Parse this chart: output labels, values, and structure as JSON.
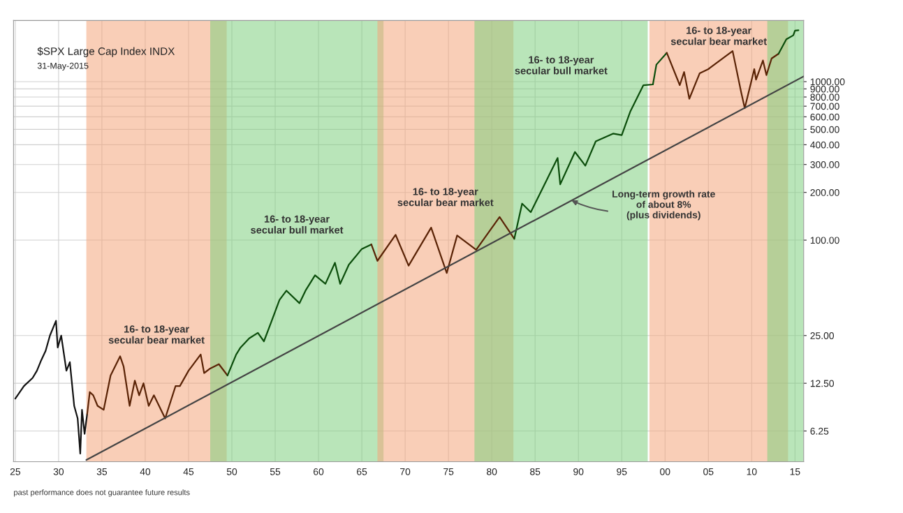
{
  "chart_data": {
    "type": "line",
    "title": "$SPX Large Cap Index INDX",
    "subtitle": "31-May-2015",
    "log": "y",
    "grid": true,
    "marker": "none",
    "line_style": "solid",
    "xlim": [
      1924.8,
      2016
    ],
    "xticks": [
      {
        "value": 1925,
        "label": "25"
      },
      {
        "value": 1930,
        "label": "30"
      },
      {
        "value": 1935,
        "label": "35"
      },
      {
        "value": 1940,
        "label": "40"
      },
      {
        "value": 1945,
        "label": "45"
      },
      {
        "value": 1950,
        "label": "50"
      },
      {
        "value": 1955,
        "label": "55"
      },
      {
        "value": 1960,
        "label": "60"
      },
      {
        "value": 1965,
        "label": "65"
      },
      {
        "value": 1970,
        "label": "70"
      },
      {
        "value": 1975,
        "label": "75"
      },
      {
        "value": 1980,
        "label": "80"
      },
      {
        "value": 1985,
        "label": "85"
      },
      {
        "value": 1990,
        "label": "90"
      },
      {
        "value": 1995,
        "label": "95"
      },
      {
        "value": 2000,
        "label": "00"
      },
      {
        "value": 2005,
        "label": "05"
      },
      {
        "value": 2010,
        "label": "10"
      },
      {
        "value": 2015,
        "label": "15"
      }
    ],
    "ylim": [
      4,
      2430
    ],
    "yticks": [
      {
        "value": 6.25,
        "label": "6.25"
      },
      {
        "value": 12.5,
        "label": "12.50"
      },
      {
        "value": 25,
        "label": "25.00"
      },
      {
        "value": 100,
        "label": "100.00"
      },
      {
        "value": 200,
        "label": "200.00"
      },
      {
        "value": 300,
        "label": "300.00"
      },
      {
        "value": 400,
        "label": "400.00"
      },
      {
        "value": 500,
        "label": "500.00"
      },
      {
        "value": 600,
        "label": "600.00"
      },
      {
        "value": 700,
        "label": "700.00"
      },
      {
        "value": 800,
        "label": "800.00"
      },
      {
        "value": 900,
        "label": "900.00"
      },
      {
        "value": 1000,
        "label": "1000.00"
      }
    ],
    "series": [
      {
        "color": "#111111",
        "x": [
          1925,
          1926,
          1927,
          1927.5,
          1928,
          1928.5,
          1929,
          1929.7,
          1929.9,
          1930.3,
          1930.9,
          1931.3,
          1931.8,
          1932.2,
          1932.5,
          1932.7,
          1933.0,
          1933.3
        ],
        "values": [
          10,
          12,
          13.5,
          15,
          17.5,
          20,
          25,
          31,
          21,
          25,
          15,
          17,
          9,
          7.5,
          4.5,
          8.5,
          6,
          8
        ]
      },
      {
        "color": "#5a2306",
        "x": [
          1933.3,
          1933.6,
          1934,
          1934.5,
          1935.2,
          1936,
          1937.1,
          1937.5,
          1938.2,
          1938.8,
          1939.3,
          1939.8,
          1940.4,
          1941,
          1942.3,
          1943.5,
          1944,
          1945,
          1946.4,
          1946.8,
          1947.5,
          1948.5,
          1949.5
        ],
        "values": [
          8,
          11,
          10.5,
          9,
          8.5,
          14,
          18.5,
          16,
          9,
          13,
          10.5,
          12.5,
          9,
          10.5,
          7.5,
          12,
          12,
          15,
          19,
          14.5,
          15.5,
          16.5,
          14
        ]
      },
      {
        "color": "#0b4d0b",
        "x": [
          1949.5,
          1950.5,
          1951,
          1952,
          1953,
          1953.7,
          1954.5,
          1955.5,
          1956.3,
          1957.8,
          1958.5,
          1959.6,
          1960.8,
          1961.9,
          1962.5,
          1963.5,
          1965,
          1966.1
        ],
        "values": [
          14,
          19,
          21,
          24,
          26,
          23,
          30,
          42,
          48,
          40,
          48,
          60,
          53,
          72,
          53,
          70,
          88,
          94
        ]
      },
      {
        "color": "#5a2306",
        "x": [
          1966.1,
          1966.8,
          1968.9,
          1970.4,
          1973.0,
          1974.8,
          1976,
          1978.2,
          1980.9,
          1982.6
        ],
        "values": [
          94,
          74,
          108,
          69,
          120,
          62,
          107,
          87,
          140,
          102
        ]
      },
      {
        "color": "#0b4d0b",
        "x": [
          1982.6,
          1983.5,
          1984.5,
          1987.6,
          1987.9,
          1989.6,
          1990.8,
          1992,
          1994,
          1995,
          1996,
          1997.5,
          1998.6,
          1999,
          2000.2
        ],
        "values": [
          102,
          170,
          150,
          330,
          225,
          360,
          295,
          420,
          470,
          460,
          650,
          950,
          960,
          1280,
          1520
        ]
      },
      {
        "color": "#5a2306",
        "x": [
          2000.2,
          2001.7,
          2002.2,
          2002.8,
          2004,
          2005,
          2007.8,
          2008.8,
          2009.2,
          2010.3,
          2010.5,
          2011.3,
          2011.7,
          2012.3,
          2013.1
        ],
        "values": [
          1520,
          950,
          1150,
          780,
          1130,
          1200,
          1560,
          850,
          680,
          1200,
          1030,
          1360,
          1100,
          1400,
          1500
        ]
      },
      {
        "color": "#0b4d0b",
        "x": [
          2013.1,
          2014,
          2014.8,
          2015.0,
          2015.4
        ],
        "values": [
          1500,
          1850,
          1960,
          2100,
          2110
        ]
      },
      {
        "color": "#444444",
        "x": [
          1933.2,
          2016
        ],
        "values": [
          4.1,
          1080
        ]
      }
    ],
    "bands": [
      {
        "axis": "x",
        "from": 1933.2,
        "to": 1949.4,
        "color": "#f4a57c",
        "label": "16- to 18-year\nsecular bear market"
      },
      {
        "axis": "x",
        "from": 1947.5,
        "to": 1967.5,
        "color": "#7fcf7f",
        "label": "16- to 18-year\nsecular bull market"
      },
      {
        "axis": "x",
        "from": 1966.8,
        "to": 1982.5,
        "color": "#f4a57c",
        "label": "16- to 18-year\nsecular bear market"
      },
      {
        "axis": "x",
        "from": 1978,
        "to": 1998,
        "color": "#7fcf7f",
        "label": "16- to 18-year\nsecular bull market"
      },
      {
        "axis": "x",
        "from": 1998.2,
        "to": 2014.2,
        "color": "#f4a57c",
        "label": "16- to 18-year\nsecular bear market"
      },
      {
        "axis": "x",
        "from": 2011.8,
        "to": 2016,
        "color": "#7fcf7f"
      }
    ],
    "annotations": [
      {
        "text": "Long-term growth rate\nof about 8%\n(plus dividends)",
        "x": 1989.2,
        "y": 178
      },
      "past performance does not guarantee future results"
    ]
  }
}
